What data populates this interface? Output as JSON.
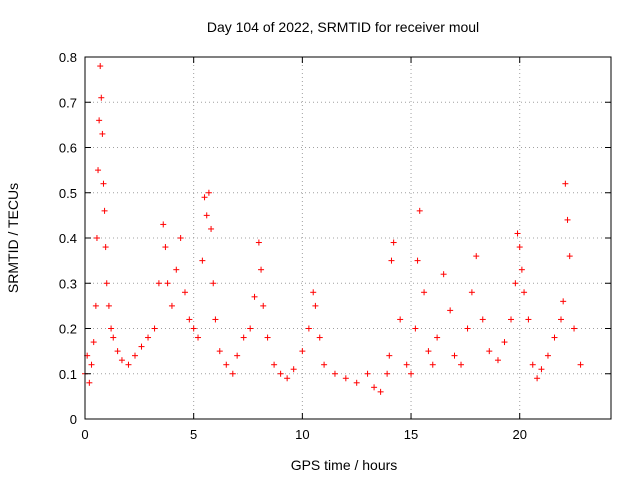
{
  "chart_data": {
    "type": "scatter",
    "title": "Day 104 of 2022, SRMTID for receiver moul",
    "xlabel": "GPS time / hours",
    "ylabel": "SRMTID / TECUs",
    "xlim": [
      0,
      24.2
    ],
    "ylim": [
      0,
      0.8
    ],
    "xticks": [
      0,
      5,
      10,
      15,
      20
    ],
    "yticks": [
      0,
      0.1,
      0.2,
      0.3,
      0.4,
      0.5,
      0.6,
      0.7,
      0.8
    ],
    "xtick_labels": [
      "0",
      "5",
      "10",
      "15",
      "20"
    ],
    "ytick_labels": [
      "0",
      "0.1",
      "0.2",
      "0.3",
      "0.4",
      "0.5",
      "0.6",
      "0.7",
      "0.8"
    ],
    "grid": true,
    "marker": "+",
    "series_color": "#ff0000",
    "series": [
      {
        "name": "SRMTID",
        "x": [
          0.0,
          0.1,
          0.2,
          0.3,
          0.4,
          0.5,
          0.55,
          0.6,
          0.65,
          0.7,
          0.75,
          0.8,
          0.85,
          0.9,
          0.95,
          1.0,
          1.1,
          1.2,
          1.3,
          1.5,
          1.7,
          2.0,
          2.3,
          2.6,
          2.9,
          3.2,
          3.4,
          3.6,
          3.7,
          3.8,
          4.0,
          4.2,
          4.4,
          4.6,
          4.8,
          5.0,
          5.2,
          5.4,
          5.5,
          5.6,
          5.7,
          5.8,
          5.9,
          6.0,
          6.2,
          6.5,
          6.8,
          7.0,
          7.3,
          7.6,
          7.8,
          8.0,
          8.1,
          8.2,
          8.4,
          8.7,
          9.0,
          9.3,
          9.6,
          10.0,
          10.3,
          10.5,
          10.6,
          10.8,
          11.0,
          11.5,
          12.0,
          12.5,
          13.0,
          13.3,
          13.6,
          13.9,
          14.0,
          14.1,
          14.2,
          14.5,
          14.8,
          15.0,
          15.2,
          15.3,
          15.4,
          15.6,
          15.8,
          16.0,
          16.2,
          16.5,
          16.8,
          17.0,
          17.3,
          17.6,
          17.8,
          18.0,
          18.3,
          18.6,
          19.0,
          19.3,
          19.6,
          19.8,
          19.9,
          20.0,
          20.1,
          20.2,
          20.4,
          20.6,
          20.8,
          21.0,
          21.3,
          21.6,
          21.9,
          22.0,
          22.1,
          22.2,
          22.3,
          22.5,
          22.8
        ],
        "y": [
          0.1,
          0.14,
          0.08,
          0.12,
          0.17,
          0.25,
          0.4,
          0.55,
          0.66,
          0.78,
          0.71,
          0.63,
          0.52,
          0.46,
          0.38,
          0.3,
          0.25,
          0.2,
          0.18,
          0.15,
          0.13,
          0.12,
          0.14,
          0.16,
          0.18,
          0.2,
          0.3,
          0.43,
          0.38,
          0.3,
          0.25,
          0.33,
          0.4,
          0.28,
          0.22,
          0.2,
          0.18,
          0.35,
          0.49,
          0.45,
          0.5,
          0.42,
          0.3,
          0.22,
          0.15,
          0.12,
          0.1,
          0.14,
          0.18,
          0.2,
          0.27,
          0.39,
          0.33,
          0.25,
          0.18,
          0.12,
          0.1,
          0.09,
          0.11,
          0.15,
          0.2,
          0.28,
          0.25,
          0.18,
          0.12,
          0.1,
          0.09,
          0.08,
          0.1,
          0.07,
          0.06,
          0.1,
          0.14,
          0.35,
          0.39,
          0.22,
          0.12,
          0.1,
          0.2,
          0.35,
          0.46,
          0.28,
          0.15,
          0.12,
          0.18,
          0.32,
          0.24,
          0.14,
          0.12,
          0.2,
          0.28,
          0.36,
          0.22,
          0.15,
          0.13,
          0.17,
          0.22,
          0.3,
          0.41,
          0.38,
          0.33,
          0.28,
          0.22,
          0.12,
          0.09,
          0.11,
          0.14,
          0.18,
          0.22,
          0.26,
          0.52,
          0.44,
          0.36,
          0.2,
          0.12
        ]
      }
    ]
  }
}
